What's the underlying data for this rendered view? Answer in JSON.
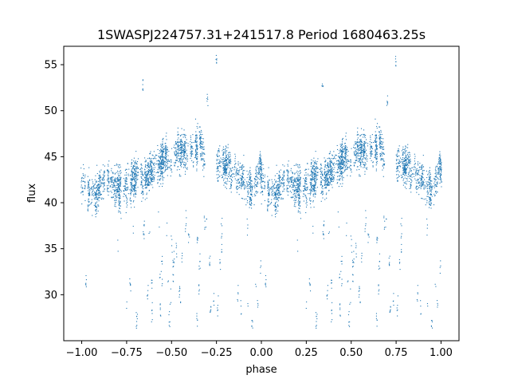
{
  "chart_data": {
    "type": "scatter",
    "title": "1SWASPJ224757.31+241517.8 Period 1680463.25s",
    "xlabel": "phase",
    "ylabel": "flux",
    "xlim": [
      -1.1,
      1.1
    ],
    "ylim": [
      25,
      57
    ],
    "x_ticks": [
      -1.0,
      -0.75,
      -0.5,
      -0.25,
      0.0,
      0.25,
      0.5,
      0.75,
      1.0
    ],
    "x_tick_labels": [
      "−1.00",
      "−0.75",
      "−0.50",
      "−0.25",
      "0.00",
      "0.25",
      "0.50",
      "0.75",
      "1.00"
    ],
    "y_ticks": [
      30,
      35,
      40,
      45,
      50,
      55
    ],
    "y_tick_labels": [
      "30",
      "35",
      "40",
      "45",
      "50",
      "55"
    ],
    "grid": false,
    "marker_color": "#1f77b4",
    "profile": {
      "phase": [
        0.0,
        0.03,
        0.06,
        0.1,
        0.15,
        0.2,
        0.25,
        0.3,
        0.35,
        0.4,
        0.45,
        0.5,
        0.55,
        0.6,
        0.65,
        0.7,
        0.75,
        0.8,
        0.85,
        0.9,
        0.95,
        1.0
      ],
      "flux": [
        43.5,
        40.8,
        40.5,
        42.0,
        42.5,
        41.5,
        41.8,
        42.8,
        43.0,
        43.8,
        44.5,
        45.0,
        45.5,
        45.8,
        46.0,
        45.5,
        44.8,
        44.0,
        43.0,
        42.0,
        41.5,
        43.5
      ],
      "spread": 1.6
    },
    "outlier_flux_range": [
      26.5,
      38.5
    ],
    "flare_points": [
      {
        "x": 0.34,
        "y": 52.7
      },
      {
        "x": -0.66,
        "y": 52.7
      },
      {
        "x": 0.75,
        "y": 55.5
      },
      {
        "x": -0.25,
        "y": 55.5
      },
      {
        "x": 0.7,
        "y": 51.0
      },
      {
        "x": -0.3,
        "y": 51.0
      }
    ]
  }
}
